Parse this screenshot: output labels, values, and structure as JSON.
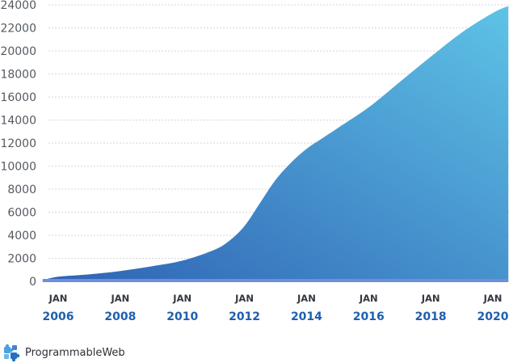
{
  "chart_data": {
    "type": "area",
    "title": "",
    "xlabel": "",
    "ylabel": "",
    "ylim": [
      0,
      24000
    ],
    "y_ticks": [
      "0",
      "2000",
      "4000",
      "6000",
      "8000",
      "10000",
      "12000",
      "14000",
      "16000",
      "18000",
      "20000",
      "22000",
      "24000"
    ],
    "x_ticks": [
      {
        "month": "JAN",
        "year": "2006"
      },
      {
        "month": "JAN",
        "year": "2008"
      },
      {
        "month": "JAN",
        "year": "2010"
      },
      {
        "month": "JAN",
        "year": "2012"
      },
      {
        "month": "JAN",
        "year": "2014"
      },
      {
        "month": "JAN",
        "year": "2016"
      },
      {
        "month": "JAN",
        "year": "2018"
      },
      {
        "month": "JAN",
        "year": "2020"
      }
    ],
    "grid": true,
    "series": [
      {
        "x": [
          2005.5,
          2006,
          2007,
          2008,
          2009,
          2010,
          2011,
          2011.5,
          2012,
          2012.5,
          2013,
          2013.5,
          2014,
          2014.5,
          2015,
          2016,
          2017,
          2018,
          2019,
          2020,
          2020.5
        ],
        "values": [
          100,
          400,
          600,
          900,
          1300,
          1800,
          2700,
          3500,
          4800,
          6800,
          8800,
          10300,
          11500,
          12400,
          13300,
          15100,
          17300,
          19500,
          21600,
          23300,
          23900
        ]
      }
    ],
    "colors": {
      "fill_top": "#5ec3e6",
      "fill_bottom": "#2f62b4",
      "baseline": "#6f8fde",
      "grid": "#d4d6dc",
      "year_label": "#1e5fae"
    }
  },
  "branding": {
    "name": "ProgrammableWeb",
    "icon": "puzzle-piece-icon"
  }
}
